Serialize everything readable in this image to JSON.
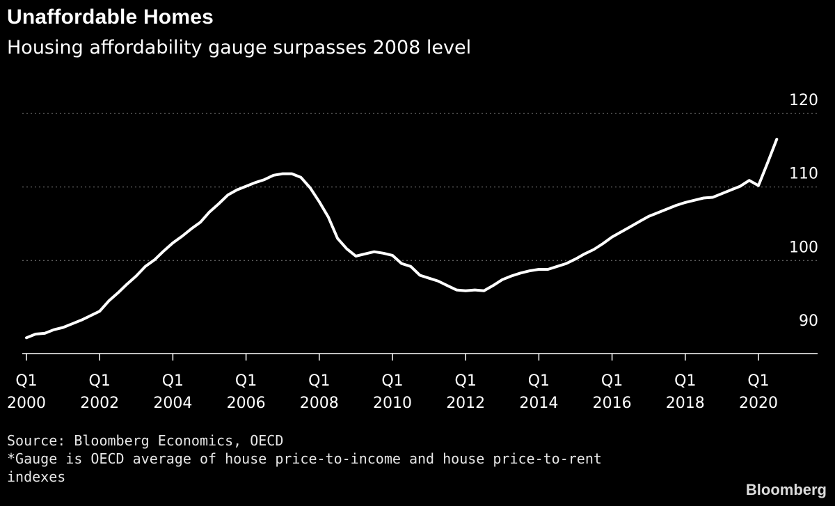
{
  "header": {
    "title": "Unaffordable Homes",
    "subtitle": "Housing affordability gauge surpasses 2008 level"
  },
  "footer": {
    "source": "Source: Bloomberg Economics, OECD",
    "note_line1": "*Gauge is OECD average of house price-to-income and house price-to-rent",
    "note_line2": "indexes",
    "brand": "Bloomberg"
  },
  "colors": {
    "background": "#000000",
    "line": "#ffffff",
    "grid": "#6e6e6e",
    "text": "#ffffff"
  },
  "chart_data": {
    "type": "line",
    "title": "Unaffordable Homes",
    "subtitle": "Housing affordability gauge surpasses 2008 level",
    "xlabel": "",
    "ylabel": "",
    "ylim": [
      88,
      122
    ],
    "y_ticks": [
      90,
      100,
      110,
      120
    ],
    "y_axis_side": "right",
    "grid": "horizontal dotted",
    "legend": "none",
    "x_tick_labels": [
      {
        "top": "Q1",
        "bottom": "2000",
        "x": 2000.0
      },
      {
        "top": "Q1",
        "bottom": "2002",
        "x": 2002.0
      },
      {
        "top": "Q1",
        "bottom": "2004",
        "x": 2004.0
      },
      {
        "top": "Q1",
        "bottom": "2006",
        "x": 2006.0
      },
      {
        "top": "Q1",
        "bottom": "2008",
        "x": 2008.0
      },
      {
        "top": "Q1",
        "bottom": "2010",
        "x": 2010.0
      },
      {
        "top": "Q1",
        "bottom": "2012",
        "x": 2012.0
      },
      {
        "top": "Q1",
        "bottom": "2014",
        "x": 2014.0
      },
      {
        "top": "Q1",
        "bottom": "2016",
        "x": 2016.0
      },
      {
        "top": "Q1",
        "bottom": "2018",
        "x": 2018.0
      },
      {
        "top": "Q1",
        "bottom": "2020",
        "x": 2020.0
      }
    ],
    "series": [
      {
        "x": [
          2000.0,
          2000.25,
          2000.5,
          2000.75,
          2001.0,
          2001.25,
          2001.5,
          2001.75,
          2002.0,
          2002.25,
          2002.5,
          2002.75,
          2003.0,
          2003.25,
          2003.5,
          2003.75,
          2004.0,
          2004.25,
          2004.5,
          2004.75,
          2005.0,
          2005.25,
          2005.5,
          2005.75,
          2006.0,
          2006.25,
          2006.5,
          2006.75,
          2007.0,
          2007.25,
          2007.5,
          2007.75,
          2008.0,
          2008.25,
          2008.5,
          2008.75,
          2009.0,
          2009.25,
          2009.5,
          2009.75,
          2010.0,
          2010.25,
          2010.5,
          2010.75,
          2011.0,
          2011.25,
          2011.5,
          2011.75,
          2012.0,
          2012.25,
          2012.5,
          2012.75,
          2013.0,
          2013.25,
          2013.5,
          2013.75,
          2014.0,
          2014.25,
          2014.5,
          2014.75,
          2015.0,
          2015.25,
          2015.5,
          2015.75,
          2016.0,
          2016.25,
          2016.5,
          2016.75,
          2017.0,
          2017.25,
          2017.5,
          2017.75,
          2018.0,
          2018.25,
          2018.5,
          2018.75,
          2019.0,
          2019.25,
          2019.5,
          2019.75,
          2020.0,
          2020.25,
          2020.5
        ],
        "values": [
          89.5,
          90.0,
          90.1,
          90.6,
          90.9,
          91.4,
          91.9,
          92.5,
          93.1,
          94.5,
          95.6,
          96.8,
          97.9,
          99.2,
          100.1,
          101.3,
          102.4,
          103.3,
          104.3,
          105.2,
          106.6,
          107.7,
          108.9,
          109.6,
          110.1,
          110.6,
          111.0,
          111.6,
          111.8,
          111.8,
          111.3,
          109.9,
          108.0,
          105.9,
          103.0,
          101.6,
          100.6,
          100.9,
          101.2,
          101.0,
          100.7,
          99.6,
          99.2,
          98.0,
          97.6,
          97.2,
          96.6,
          96.0,
          95.9,
          96.0,
          95.9,
          96.6,
          97.4,
          97.9,
          98.3,
          98.6,
          98.8,
          98.8,
          99.2,
          99.6,
          100.2,
          100.9,
          101.5,
          102.3,
          103.2,
          103.9,
          104.6,
          105.3,
          106.0,
          106.5,
          107.0,
          107.5,
          107.9,
          108.2,
          108.5,
          108.6,
          109.1,
          109.6,
          110.1,
          110.9,
          110.2,
          113.3,
          116.5
        ]
      }
    ]
  }
}
